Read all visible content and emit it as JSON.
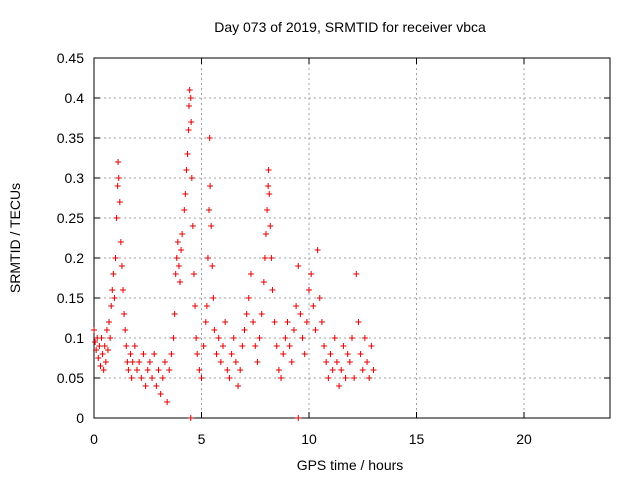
{
  "chart_data": {
    "type": "scatter",
    "title": "Day 073 of 2019, SRMTID for receiver vbca",
    "xlabel": "GPS time / hours",
    "ylabel": "SRMTID / TECUs",
    "xlim": [
      0,
      24
    ],
    "ylim": [
      0,
      0.45
    ],
    "xticks": [
      0,
      5,
      10,
      15,
      20
    ],
    "xtick_labels": [
      "0",
      "5",
      "10",
      "15",
      "20"
    ],
    "yticks": [
      0,
      0.05,
      0.1,
      0.15,
      0.2,
      0.25,
      0.3,
      0.35,
      0.4,
      0.45
    ],
    "ytick_labels": [
      "0",
      "0.05",
      "0.1",
      "0.15",
      "0.2",
      "0.25",
      "0.3",
      "0.35",
      "0.4",
      "0.45"
    ],
    "grid": true,
    "marker": "+",
    "color": "#e00000",
    "series": [
      {
        "name": "SRMTID",
        "points": [
          [
            0.0,
            0.11
          ],
          [
            0.05,
            0.095
          ],
          [
            0.1,
            0.085
          ],
          [
            0.15,
            0.1
          ],
          [
            0.2,
            0.075
          ],
          [
            0.25,
            0.09
          ],
          [
            0.3,
            0.065
          ],
          [
            0.35,
            0.1
          ],
          [
            0.4,
            0.08
          ],
          [
            0.45,
            0.06
          ],
          [
            0.5,
            0.09
          ],
          [
            0.55,
            0.07
          ],
          [
            0.6,
            0.11
          ],
          [
            0.65,
            0.085
          ],
          [
            0.7,
            0.12
          ],
          [
            0.75,
            0.1
          ],
          [
            0.8,
            0.14
          ],
          [
            0.85,
            0.16
          ],
          [
            0.9,
            0.18
          ],
          [
            0.95,
            0.15
          ],
          [
            1.0,
            0.2
          ],
          [
            1.05,
            0.25
          ],
          [
            1.1,
            0.29
          ],
          [
            1.12,
            0.32
          ],
          [
            1.15,
            0.3
          ],
          [
            1.2,
            0.27
          ],
          [
            1.25,
            0.22
          ],
          [
            1.3,
            0.19
          ],
          [
            1.35,
            0.16
          ],
          [
            1.4,
            0.13
          ],
          [
            1.45,
            0.11
          ],
          [
            1.5,
            0.09
          ],
          [
            1.55,
            0.07
          ],
          [
            1.6,
            0.06
          ],
          [
            1.7,
            0.08
          ],
          [
            1.75,
            0.05
          ],
          [
            1.8,
            0.07
          ],
          [
            1.9,
            0.09
          ],
          [
            2.0,
            0.06
          ],
          [
            2.1,
            0.07
          ],
          [
            2.2,
            0.05
          ],
          [
            2.3,
            0.08
          ],
          [
            2.4,
            0.04
          ],
          [
            2.5,
            0.06
          ],
          [
            2.6,
            0.07
          ],
          [
            2.7,
            0.05
          ],
          [
            2.8,
            0.08
          ],
          [
            2.9,
            0.04
          ],
          [
            3.0,
            0.06
          ],
          [
            3.1,
            0.03
          ],
          [
            3.2,
            0.05
          ],
          [
            3.3,
            0.07
          ],
          [
            3.4,
            0.02
          ],
          [
            3.5,
            0.06
          ],
          [
            3.6,
            0.08
          ],
          [
            3.7,
            0.1
          ],
          [
            3.75,
            0.13
          ],
          [
            3.8,
            0.18
          ],
          [
            3.85,
            0.2
          ],
          [
            3.9,
            0.22
          ],
          [
            3.95,
            0.19
          ],
          [
            4.0,
            0.17
          ],
          [
            4.05,
            0.21
          ],
          [
            4.1,
            0.23
          ],
          [
            4.2,
            0.26
          ],
          [
            4.25,
            0.28
          ],
          [
            4.3,
            0.31
          ],
          [
            4.35,
            0.33
          ],
          [
            4.4,
            0.36
          ],
          [
            4.42,
            0.39
          ],
          [
            4.45,
            0.41
          ],
          [
            4.5,
            0.4
          ],
          [
            4.52,
            0.37
          ],
          [
            4.55,
            0.3
          ],
          [
            4.6,
            0.24
          ],
          [
            4.65,
            0.18
          ],
          [
            4.7,
            0.14
          ],
          [
            4.75,
            0.1
          ],
          [
            4.5,
            0.0
          ],
          [
            4.8,
            0.08
          ],
          [
            4.9,
            0.06
          ],
          [
            5.0,
            0.05
          ],
          [
            5.1,
            0.09
          ],
          [
            5.2,
            0.12
          ],
          [
            5.25,
            0.14
          ],
          [
            5.3,
            0.2
          ],
          [
            5.35,
            0.26
          ],
          [
            5.38,
            0.35
          ],
          [
            5.4,
            0.29
          ],
          [
            5.45,
            0.24
          ],
          [
            5.5,
            0.19
          ],
          [
            5.55,
            0.15
          ],
          [
            5.6,
            0.11
          ],
          [
            5.7,
            0.08
          ],
          [
            5.8,
            0.1
          ],
          [
            5.9,
            0.07
          ],
          [
            6.0,
            0.09
          ],
          [
            6.1,
            0.12
          ],
          [
            6.2,
            0.06
          ],
          [
            6.3,
            0.05
          ],
          [
            6.4,
            0.08
          ],
          [
            6.5,
            0.1
          ],
          [
            6.6,
            0.07
          ],
          [
            6.7,
            0.04
          ],
          [
            6.8,
            0.06
          ],
          [
            6.9,
            0.09
          ],
          [
            7.0,
            0.11
          ],
          [
            7.1,
            0.13
          ],
          [
            7.2,
            0.15
          ],
          [
            7.3,
            0.18
          ],
          [
            7.4,
            0.12
          ],
          [
            7.5,
            0.09
          ],
          [
            7.6,
            0.07
          ],
          [
            7.7,
            0.1
          ],
          [
            7.8,
            0.13
          ],
          [
            7.9,
            0.17
          ],
          [
            7.95,
            0.2
          ],
          [
            8.0,
            0.23
          ],
          [
            8.05,
            0.26
          ],
          [
            8.1,
            0.29
          ],
          [
            8.12,
            0.31
          ],
          [
            8.15,
            0.28
          ],
          [
            8.2,
            0.24
          ],
          [
            8.25,
            0.2
          ],
          [
            8.3,
            0.16
          ],
          [
            8.4,
            0.12
          ],
          [
            8.5,
            0.09
          ],
          [
            8.6,
            0.06
          ],
          [
            8.7,
            0.05
          ],
          [
            8.8,
            0.08
          ],
          [
            8.9,
            0.1
          ],
          [
            9.0,
            0.12
          ],
          [
            9.1,
            0.09
          ],
          [
            9.2,
            0.07
          ],
          [
            9.3,
            0.11
          ],
          [
            9.4,
            0.14
          ],
          [
            9.5,
            0.19
          ],
          [
            9.5,
            0.0
          ],
          [
            9.6,
            0.13
          ],
          [
            9.7,
            0.1
          ],
          [
            9.8,
            0.08
          ],
          [
            9.9,
            0.12
          ],
          [
            10.0,
            0.16
          ],
          [
            10.1,
            0.18
          ],
          [
            10.2,
            0.14
          ],
          [
            10.3,
            0.11
          ],
          [
            10.4,
            0.21
          ],
          [
            10.5,
            0.15
          ],
          [
            10.6,
            0.12
          ],
          [
            10.7,
            0.09
          ],
          [
            10.8,
            0.07
          ],
          [
            10.9,
            0.05
          ],
          [
            11.0,
            0.08
          ],
          [
            11.1,
            0.06
          ],
          [
            11.2,
            0.1
          ],
          [
            11.3,
            0.07
          ],
          [
            11.4,
            0.04
          ],
          [
            11.5,
            0.06
          ],
          [
            11.6,
            0.09
          ],
          [
            11.7,
            0.05
          ],
          [
            11.8,
            0.08
          ],
          [
            11.9,
            0.07
          ],
          [
            12.0,
            0.1
          ],
          [
            12.1,
            0.05
          ],
          [
            12.2,
            0.18
          ],
          [
            12.3,
            0.12
          ],
          [
            12.4,
            0.08
          ],
          [
            12.5,
            0.06
          ],
          [
            12.6,
            0.1
          ],
          [
            12.7,
            0.07
          ],
          [
            12.8,
            0.05
          ],
          [
            12.9,
            0.09
          ],
          [
            13.0,
            0.06
          ]
        ]
      }
    ]
  }
}
